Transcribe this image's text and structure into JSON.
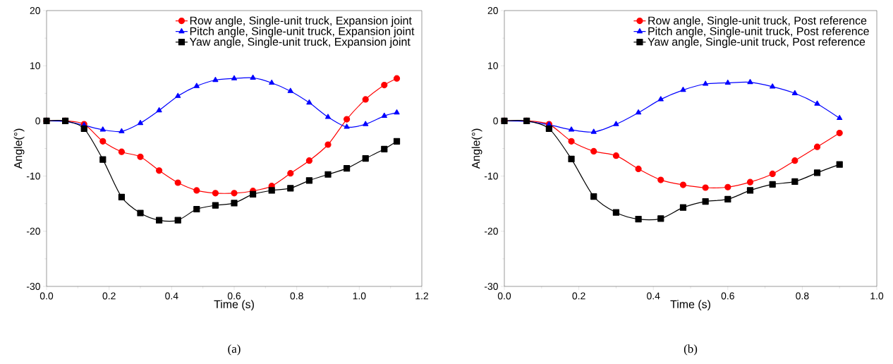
{
  "chart_data": [
    {
      "type": "line",
      "xlabel": "Time (s)",
      "ylabel": "Angle(°)",
      "annotations": [
        "(a)"
      ],
      "x": [
        0,
        0.06,
        0.12,
        0.18,
        0.24,
        0.3,
        0.36,
        0.42,
        0.48,
        0.54,
        0.6,
        0.66,
        0.72,
        0.78,
        0.84,
        0.9,
        0.96,
        1.02,
        1.08,
        1.12
      ],
      "series": [
        {
          "name": "Row angle, Single-unit truck, Expansion joint",
          "color": "#ff0000",
          "marker": "circle",
          "values": [
            0,
            0,
            -0.6,
            -3.7,
            -5.6,
            -6.5,
            -9,
            -11.2,
            -12.6,
            -13.1,
            -13.1,
            -12.7,
            -11.8,
            -9.5,
            -7.2,
            -4.3,
            0.3,
            3.9,
            6.5,
            7.7
          ]
        },
        {
          "name": "Pitch angle, Single-unit truck, Expansion joint",
          "color": "#0000ff",
          "marker": "triangle",
          "values": [
            0,
            -0.1,
            -0.8,
            -1.6,
            -1.9,
            -0.4,
            1.9,
            4.5,
            6.3,
            7.4,
            7.7,
            7.8,
            6.9,
            5.4,
            3.3,
            0.7,
            -1.1,
            -0.6,
            0.9,
            1.5
          ]
        },
        {
          "name": "Yaw angle, Single-unit truck, Expansion joint",
          "color": "#000000",
          "marker": "square",
          "values": [
            0,
            0,
            -1.4,
            -7,
            -13.8,
            -16.7,
            -18,
            -18,
            -16,
            -15.3,
            -14.9,
            -13.3,
            -12.6,
            -12.2,
            -10.8,
            -9.7,
            -8.6,
            -6.8,
            -5.1,
            -3.7
          ]
        }
      ],
      "xlim": [
        0,
        1.2
      ],
      "ylim": [
        -30,
        20
      ],
      "xticks": [
        {
          "value": 0,
          "label": "0.0"
        },
        {
          "value": 0.2,
          "label": "0.2"
        },
        {
          "value": 0.4,
          "label": "0.4"
        },
        {
          "value": 0.6,
          "label": "0.6"
        },
        {
          "value": 0.8,
          "label": "0.8"
        },
        {
          "value": 1.0,
          "label": "1.0"
        },
        {
          "value": 1.2,
          "label": "1.2"
        }
      ],
      "yticks": [
        -30,
        -20,
        -10,
        0,
        10,
        20
      ],
      "legend": "top right",
      "grid": false
    },
    {
      "type": "line",
      "xlabel": "Time (s)",
      "ylabel": "Angle(°)",
      "annotations": [
        "(b)"
      ],
      "x": [
        0,
        0.06,
        0.12,
        0.18,
        0.24,
        0.3,
        0.36,
        0.42,
        0.48,
        0.54,
        0.6,
        0.66,
        0.72,
        0.78,
        0.84,
        0.9
      ],
      "series": [
        {
          "name": "Row angle, Single-unit truck, Post reference",
          "color": "#ff0000",
          "marker": "circle",
          "values": [
            0,
            0,
            -0.6,
            -3.7,
            -5.5,
            -6.3,
            -8.7,
            -10.7,
            -11.6,
            -12.1,
            -12.0,
            -11.1,
            -9.6,
            -7.2,
            -4.7,
            -2.2
          ]
        },
        {
          "name": "Pitch angle, Single-unit truck, Post reference",
          "color": "#0000ff",
          "marker": "triangle",
          "values": [
            0,
            -0.1,
            -0.7,
            -1.6,
            -2.0,
            -0.6,
            1.5,
            3.9,
            5.6,
            6.7,
            6.9,
            7.0,
            6.2,
            5.0,
            3.1,
            0.5
          ]
        },
        {
          "name": "Yaw angle, Single-unit truck, Post reference",
          "color": "#000000",
          "marker": "square",
          "values": [
            0,
            0,
            -1.4,
            -6.9,
            -13.7,
            -16.6,
            -17.8,
            -17.7,
            -15.7,
            -14.6,
            -14.2,
            -12.6,
            -11.5,
            -11.0,
            -9.4,
            -7.9
          ]
        }
      ],
      "xlim": [
        0,
        1.0
      ],
      "ylim": [
        -30,
        20
      ],
      "xticks": [
        {
          "value": 0,
          "label": "0.0"
        },
        {
          "value": 0.2,
          "label": "0.2"
        },
        {
          "value": 0.4,
          "label": "0.4"
        },
        {
          "value": 0.6,
          "label": "0.6"
        },
        {
          "value": 0.8,
          "label": "0.8"
        },
        {
          "value": 1.0,
          "label": "1.0"
        }
      ],
      "yticks": [
        -30,
        -20,
        -10,
        0,
        10,
        20
      ],
      "legend": "top right",
      "grid": false
    }
  ]
}
